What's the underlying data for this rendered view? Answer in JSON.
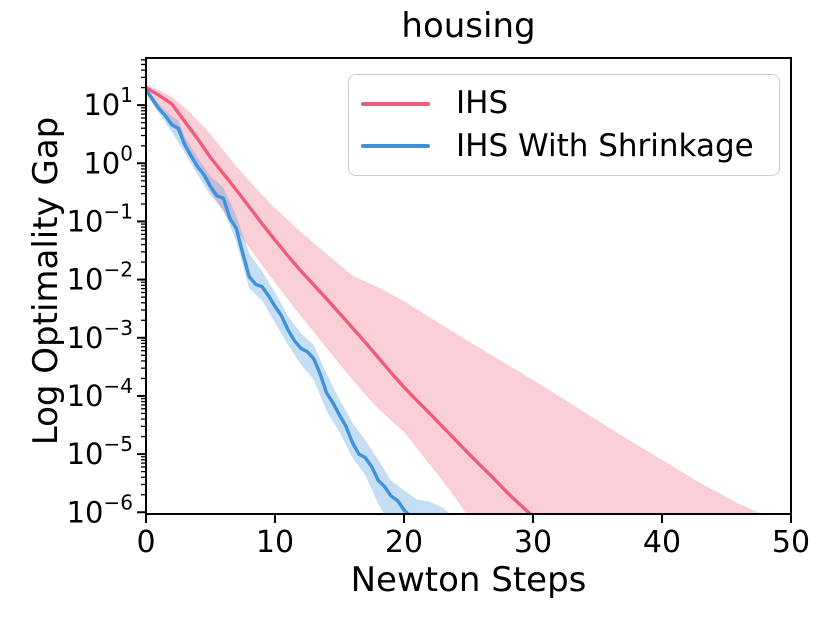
{
  "title": "housing",
  "axes": {
    "xlabel": "Newton Steps",
    "ylabel": "Log Optimality Gap"
  },
  "legend": {
    "items": [
      {
        "label": "IHS",
        "color": "#EF5C7B"
      },
      {
        "label": "IHS With Shrinkage",
        "color": "#3E92DC"
      }
    ]
  },
  "colors": {
    "ihs_line": "#EF5C7B",
    "shrinkage_line": "#3E92DC",
    "band_opacity": 0.3,
    "axis": "#000000",
    "legend_border": "#cccccc"
  },
  "chart_data": {
    "type": "line",
    "title": "housing",
    "xlabel": "Newton Steps",
    "ylabel": "Log Optimality Gap",
    "grid": false,
    "legend_position": "upper center",
    "x_ticks": [
      0,
      10,
      20,
      30,
      40,
      50
    ],
    "y_tick_base": "10",
    "y_tick_exponents": [
      1,
      0,
      -1,
      -2,
      -3,
      -4,
      -5,
      -6
    ],
    "xlim": [
      0,
      50
    ],
    "ylim_log10": [
      -6.03,
      1.81
    ],
    "yscale": "log",
    "series": [
      {
        "name": "IHS",
        "color": "#EF5C7B",
        "points_log10": [
          [
            0,
            1.3
          ],
          [
            1,
            1.17
          ],
          [
            2,
            1.02
          ],
          [
            3,
            0.72
          ],
          [
            4,
            0.42
          ],
          [
            5,
            0.1
          ],
          [
            6,
            -0.18
          ],
          [
            7,
            -0.46
          ],
          [
            8,
            -0.75
          ],
          [
            9,
            -1.04
          ],
          [
            10,
            -1.32
          ],
          [
            11,
            -1.59
          ],
          [
            12,
            -1.85
          ],
          [
            13,
            -2.09
          ],
          [
            14,
            -2.33
          ],
          [
            15,
            -2.58
          ],
          [
            16,
            -2.83
          ],
          [
            17,
            -3.08
          ],
          [
            18,
            -3.34
          ],
          [
            19,
            -3.6
          ],
          [
            20,
            -3.85
          ],
          [
            21,
            -4.08
          ],
          [
            22,
            -4.3
          ],
          [
            23,
            -4.53
          ],
          [
            24,
            -4.76
          ],
          [
            25,
            -4.99
          ],
          [
            26,
            -5.21
          ],
          [
            27,
            -5.43
          ],
          [
            28,
            -5.66
          ],
          [
            29,
            -5.87
          ],
          [
            29.9,
            -6.05
          ]
        ],
        "band_lower_log10": [
          [
            0,
            1.23
          ],
          [
            1,
            1.0
          ],
          [
            2,
            0.7
          ],
          [
            3,
            0.32
          ],
          [
            4,
            -0.08
          ],
          [
            5,
            -0.48
          ],
          [
            6,
            -0.84
          ],
          [
            7,
            -1.15
          ],
          [
            8,
            -1.45
          ],
          [
            9,
            -1.75
          ],
          [
            10,
            -2.05
          ],
          [
            11,
            -2.34
          ],
          [
            12,
            -2.62
          ],
          [
            13,
            -2.9
          ],
          [
            14,
            -3.18
          ],
          [
            15,
            -3.45
          ],
          [
            16,
            -3.72
          ],
          [
            17,
            -3.98
          ],
          [
            18,
            -4.22
          ],
          [
            19,
            -4.42
          ],
          [
            20,
            -4.62
          ],
          [
            21,
            -4.9
          ],
          [
            22,
            -5.18
          ],
          [
            23,
            -5.46
          ],
          [
            24,
            -5.76
          ],
          [
            24.9,
            -6.05
          ]
        ],
        "band_upper_log10": [
          [
            0,
            1.36
          ],
          [
            1,
            1.26
          ],
          [
            2,
            1.14
          ],
          [
            3,
            0.96
          ],
          [
            4,
            0.74
          ],
          [
            5,
            0.5
          ],
          [
            6,
            0.22
          ],
          [
            7,
            -0.05
          ],
          [
            8,
            -0.3
          ],
          [
            9,
            -0.54
          ],
          [
            10,
            -0.77
          ],
          [
            12,
            -1.18
          ],
          [
            14,
            -1.56
          ],
          [
            16,
            -1.93
          ],
          [
            18,
            -2.13
          ],
          [
            20,
            -2.37
          ],
          [
            22,
            -2.65
          ],
          [
            25,
            -3.06
          ],
          [
            28,
            -3.46
          ],
          [
            31,
            -3.86
          ],
          [
            34,
            -4.28
          ],
          [
            37,
            -4.7
          ],
          [
            40,
            -5.1
          ],
          [
            43,
            -5.5
          ],
          [
            46,
            -5.86
          ],
          [
            48,
            -6.05
          ]
        ]
      },
      {
        "name": "IHS With Shrinkage",
        "color": "#3E92DC",
        "points_log10": [
          [
            0,
            1.26
          ],
          [
            0.5,
            1.1
          ],
          [
            1,
            0.94
          ],
          [
            1.5,
            0.82
          ],
          [
            2,
            0.66
          ],
          [
            2.5,
            0.6
          ],
          [
            3,
            0.32
          ],
          [
            3.5,
            0.12
          ],
          [
            4,
            -0.06
          ],
          [
            4.5,
            -0.2
          ],
          [
            5,
            -0.4
          ],
          [
            5.5,
            -0.56
          ],
          [
            6,
            -0.6
          ],
          [
            6.5,
            -0.95
          ],
          [
            7,
            -1.12
          ],
          [
            7.5,
            -1.55
          ],
          [
            8,
            -1.95
          ],
          [
            8.5,
            -2.08
          ],
          [
            9,
            -2.12
          ],
          [
            9.5,
            -2.28
          ],
          [
            10,
            -2.46
          ],
          [
            10.5,
            -2.62
          ],
          [
            11,
            -2.86
          ],
          [
            11.5,
            -3.05
          ],
          [
            12,
            -3.18
          ],
          [
            12.5,
            -3.24
          ],
          [
            13,
            -3.36
          ],
          [
            13.5,
            -3.62
          ],
          [
            14,
            -3.95
          ],
          [
            14.5,
            -4.12
          ],
          [
            15,
            -4.33
          ],
          [
            15.5,
            -4.52
          ],
          [
            16,
            -4.8
          ],
          [
            16.5,
            -5.0
          ],
          [
            17,
            -5.06
          ],
          [
            17.5,
            -5.22
          ],
          [
            18,
            -5.45
          ],
          [
            18.5,
            -5.56
          ],
          [
            19,
            -5.72
          ],
          [
            19.5,
            -5.8
          ],
          [
            20,
            -5.96
          ],
          [
            20.4,
            -6.05
          ]
        ],
        "band_lower_log10": [
          [
            0,
            1.21
          ],
          [
            1,
            0.86
          ],
          [
            2,
            0.54
          ],
          [
            3,
            0.18
          ],
          [
            4,
            -0.2
          ],
          [
            5,
            -0.55
          ],
          [
            6,
            -0.8
          ],
          [
            7,
            -1.35
          ],
          [
            8,
            -2.15
          ],
          [
            9,
            -2.36
          ],
          [
            10,
            -2.74
          ],
          [
            11,
            -3.12
          ],
          [
            12,
            -3.46
          ],
          [
            13,
            -3.72
          ],
          [
            14,
            -4.26
          ],
          [
            15,
            -4.62
          ],
          [
            16,
            -5.06
          ],
          [
            17,
            -5.36
          ],
          [
            18,
            -5.86
          ],
          [
            18.5,
            -6.05
          ]
        ],
        "band_upper_log10": [
          [
            0,
            1.31
          ],
          [
            1,
            1.02
          ],
          [
            2,
            0.8
          ],
          [
            2.5,
            0.74
          ],
          [
            3,
            0.46
          ],
          [
            4,
            0.1
          ],
          [
            5,
            -0.22
          ],
          [
            6,
            -0.42
          ],
          [
            7,
            -0.9
          ],
          [
            8,
            -1.55
          ],
          [
            9,
            -1.86
          ],
          [
            10,
            -2.22
          ],
          [
            11,
            -2.62
          ],
          [
            12,
            -2.92
          ],
          [
            13,
            -3.12
          ],
          [
            14,
            -3.62
          ],
          [
            15,
            -4.06
          ],
          [
            16,
            -4.46
          ],
          [
            17,
            -4.76
          ],
          [
            18,
            -5.1
          ],
          [
            19,
            -5.46
          ],
          [
            20,
            -5.62
          ],
          [
            21,
            -5.78
          ],
          [
            22,
            -5.82
          ],
          [
            23,
            -5.92
          ],
          [
            23.7,
            -6.05
          ]
        ]
      }
    ]
  }
}
